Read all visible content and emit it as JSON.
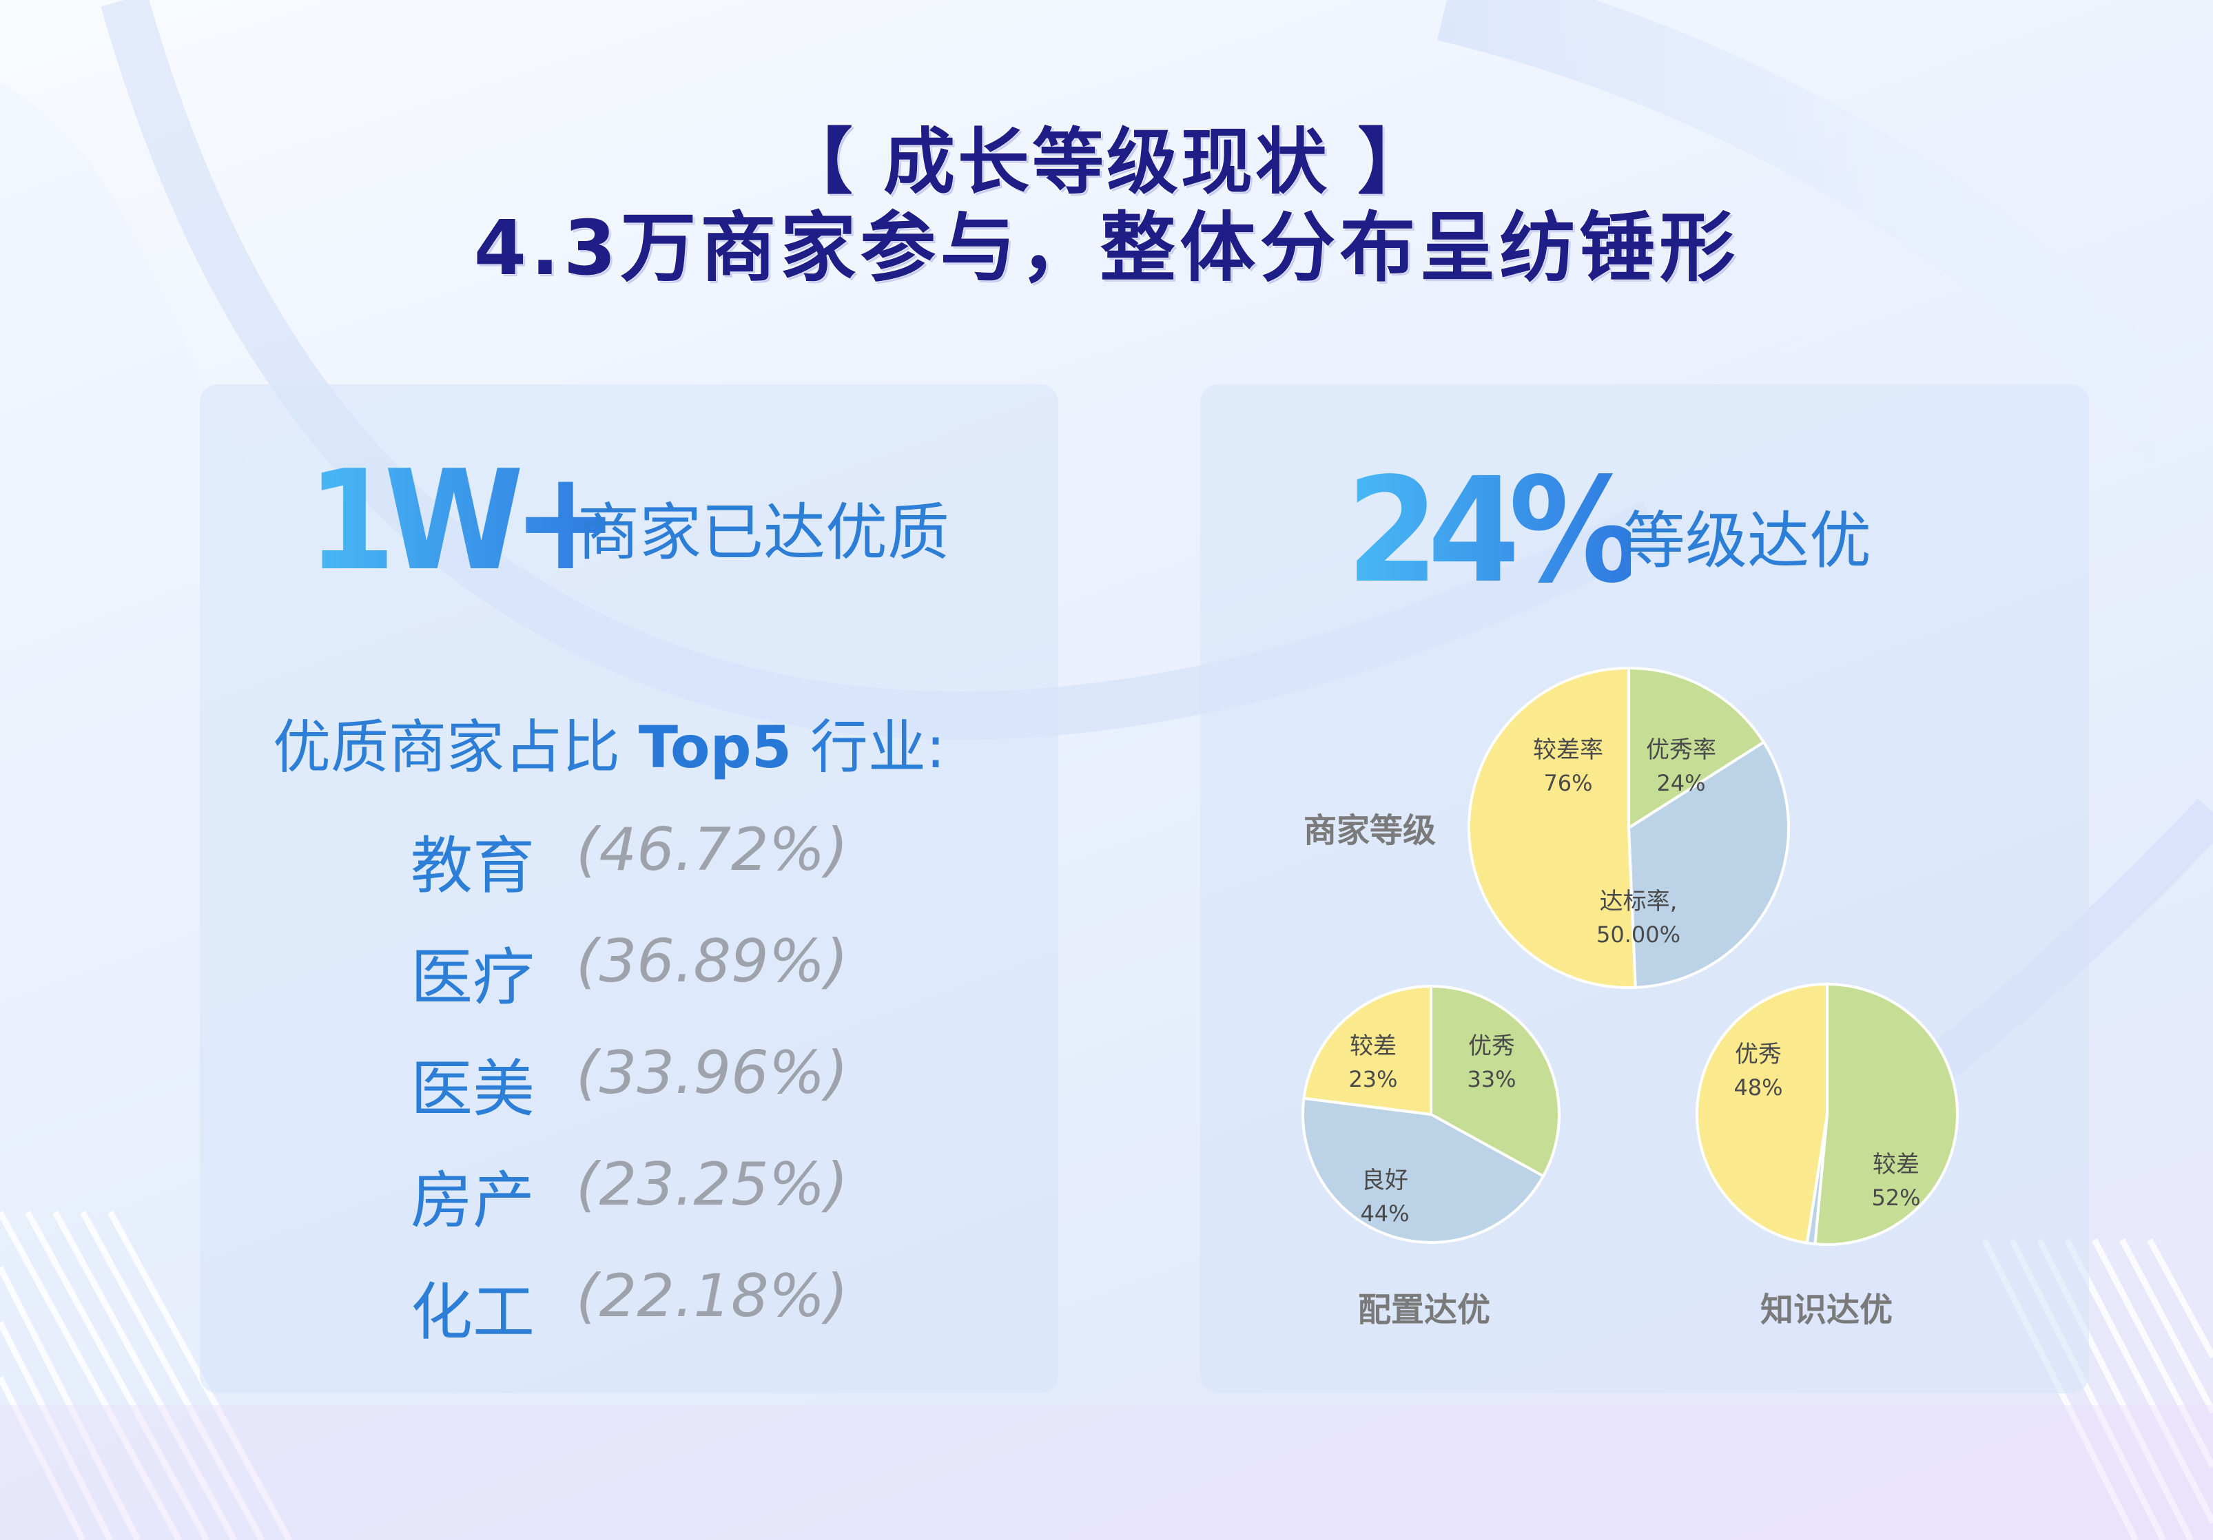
{
  "title": {
    "line1": "【 成长等级现状 】",
    "line2": "4.3万商家参与，整体分布呈纺锤形"
  },
  "left_panel": {
    "badge": "1W+",
    "headline": "商家已达优质",
    "top5_heading_cn1": "优质商家占比 ",
    "top5_heading_en": "Top5",
    "top5_heading_cn2": " 行业:",
    "industries": [
      {
        "name": "教育",
        "value": "(46.72%)"
      },
      {
        "name": "医疗",
        "value": "(36.89%)"
      },
      {
        "name": "医美",
        "value": "(33.96%)"
      },
      {
        "name": "房产",
        "value": "(23.25%)"
      },
      {
        "name": "化工",
        "value": "(22.18%)"
      }
    ]
  },
  "right_panel": {
    "badge": "24%",
    "headline": "等级达优"
  },
  "colors": {
    "green": "#c6dd95",
    "yellow": "#fbe98e",
    "blue": "#bcd2e6",
    "title": "#1e1e86",
    "accent": "#2c7ed6"
  },
  "chart_data": [
    {
      "type": "pie",
      "title": "商家等级",
      "slices": [
        {
          "label": "优秀率",
          "value": 24,
          "display": "24%",
          "color": "green"
        },
        {
          "label": "达标率,",
          "value": 50,
          "display": "50.00%",
          "color": "blue"
        },
        {
          "label": "较差率",
          "value": 76,
          "display": "76%",
          "color": "yellow"
        }
      ]
    },
    {
      "type": "pie",
      "title": "配置达优",
      "slices": [
        {
          "label": "优秀",
          "value": 33,
          "display": "33%",
          "color": "green"
        },
        {
          "label": "良好",
          "value": 44,
          "display": "44%",
          "color": "blue"
        },
        {
          "label": "较差",
          "value": 23,
          "display": "23%",
          "color": "yellow"
        }
      ]
    },
    {
      "type": "pie",
      "title": "知识达优",
      "slices": [
        {
          "label": "较差",
          "value": 52,
          "display": "52%",
          "color": "green"
        },
        {
          "label": "",
          "value": 1,
          "display": "",
          "color": "blue"
        },
        {
          "label": "优秀",
          "value": 48,
          "display": "48%",
          "color": "yellow"
        }
      ]
    }
  ]
}
